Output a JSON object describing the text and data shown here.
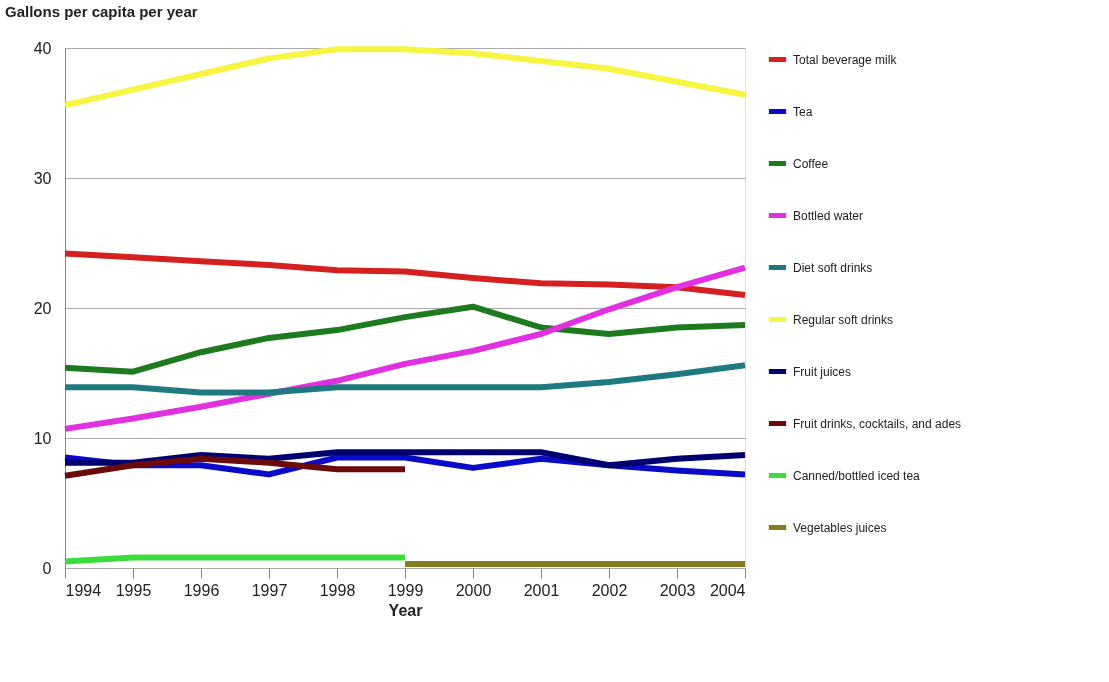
{
  "chart_data": {
    "type": "line",
    "title": "Gallons per capita per year",
    "xlabel": "Year",
    "x": [
      1994,
      1995,
      1996,
      1997,
      1998,
      1999,
      2000,
      2001,
      2002,
      2003,
      2004
    ],
    "xlim": [
      1994,
      2004
    ],
    "xticks": [
      1994,
      1995,
      1996,
      1997,
      1998,
      1999,
      2000,
      2001,
      2002,
      2003,
      2004
    ],
    "ylim": [
      0,
      40
    ],
    "yticks": [
      0,
      10,
      20,
      30,
      40
    ],
    "grid": "y",
    "legend": "right",
    "marker": "none",
    "line_style": "solid",
    "series": [
      {
        "name": "Total beverage milk",
        "color": "#d42020",
        "values": [
          24.2,
          23.9,
          23.6,
          23.3,
          22.9,
          22.8,
          22.3,
          21.9,
          21.8,
          21.6,
          21.0
        ]
      },
      {
        "name": "Tea",
        "color": "#0a0ac8",
        "values": [
          8.5,
          7.9,
          7.9,
          7.2,
          8.5,
          8.5,
          7.7,
          8.4,
          7.9,
          7.5,
          7.2
        ]
      },
      {
        "name": "Coffee",
        "color": "#1e7a1e",
        "values": [
          15.4,
          15.1,
          16.6,
          17.7,
          18.3,
          19.3,
          20.1,
          18.5,
          18.0,
          18.5,
          18.7
        ]
      },
      {
        "name": "Bottled water",
        "color": "#e030e0",
        "values": [
          10.7,
          11.5,
          12.4,
          13.4,
          14.4,
          15.7,
          16.7,
          18.0,
          19.9,
          21.6,
          23.1
        ]
      },
      {
        "name": "Diet soft drinks",
        "color": "#1e7a80",
        "values": [
          13.9,
          13.9,
          13.5,
          13.5,
          13.9,
          13.9,
          13.9,
          13.9,
          14.3,
          14.9,
          15.6
        ]
      },
      {
        "name": "Regular soft drinks",
        "color": "#f5f542",
        "values": [
          35.6,
          36.8,
          38.0,
          39.2,
          39.9,
          39.9,
          39.6,
          39.0,
          38.4,
          37.4,
          36.4
        ]
      },
      {
        "name": "Fruit juices",
        "color": "#000070",
        "values": [
          8.1,
          8.1,
          8.7,
          8.4,
          8.9,
          8.9,
          8.9,
          8.9,
          7.9,
          8.4,
          8.7
        ]
      },
      {
        "name": "Fruit drinks, cocktails, and ades",
        "color": "#6a0a0a",
        "values": [
          7.1,
          7.9,
          8.4,
          8.1,
          7.6,
          7.6,
          null,
          null,
          null,
          null,
          null
        ]
      },
      {
        "name": "Canned/bottled iced tea",
        "color": "#3cdc3c",
        "values": [
          0.5,
          0.8,
          0.8,
          0.8,
          0.8,
          0.8,
          null,
          null,
          null,
          null,
          null
        ]
      },
      {
        "name": "Vegetables juices",
        "color": "#857d1e",
        "values": [
          null,
          null,
          null,
          null,
          null,
          0.3,
          0.3,
          0.3,
          0.3,
          0.3,
          0.3
        ]
      }
    ]
  }
}
